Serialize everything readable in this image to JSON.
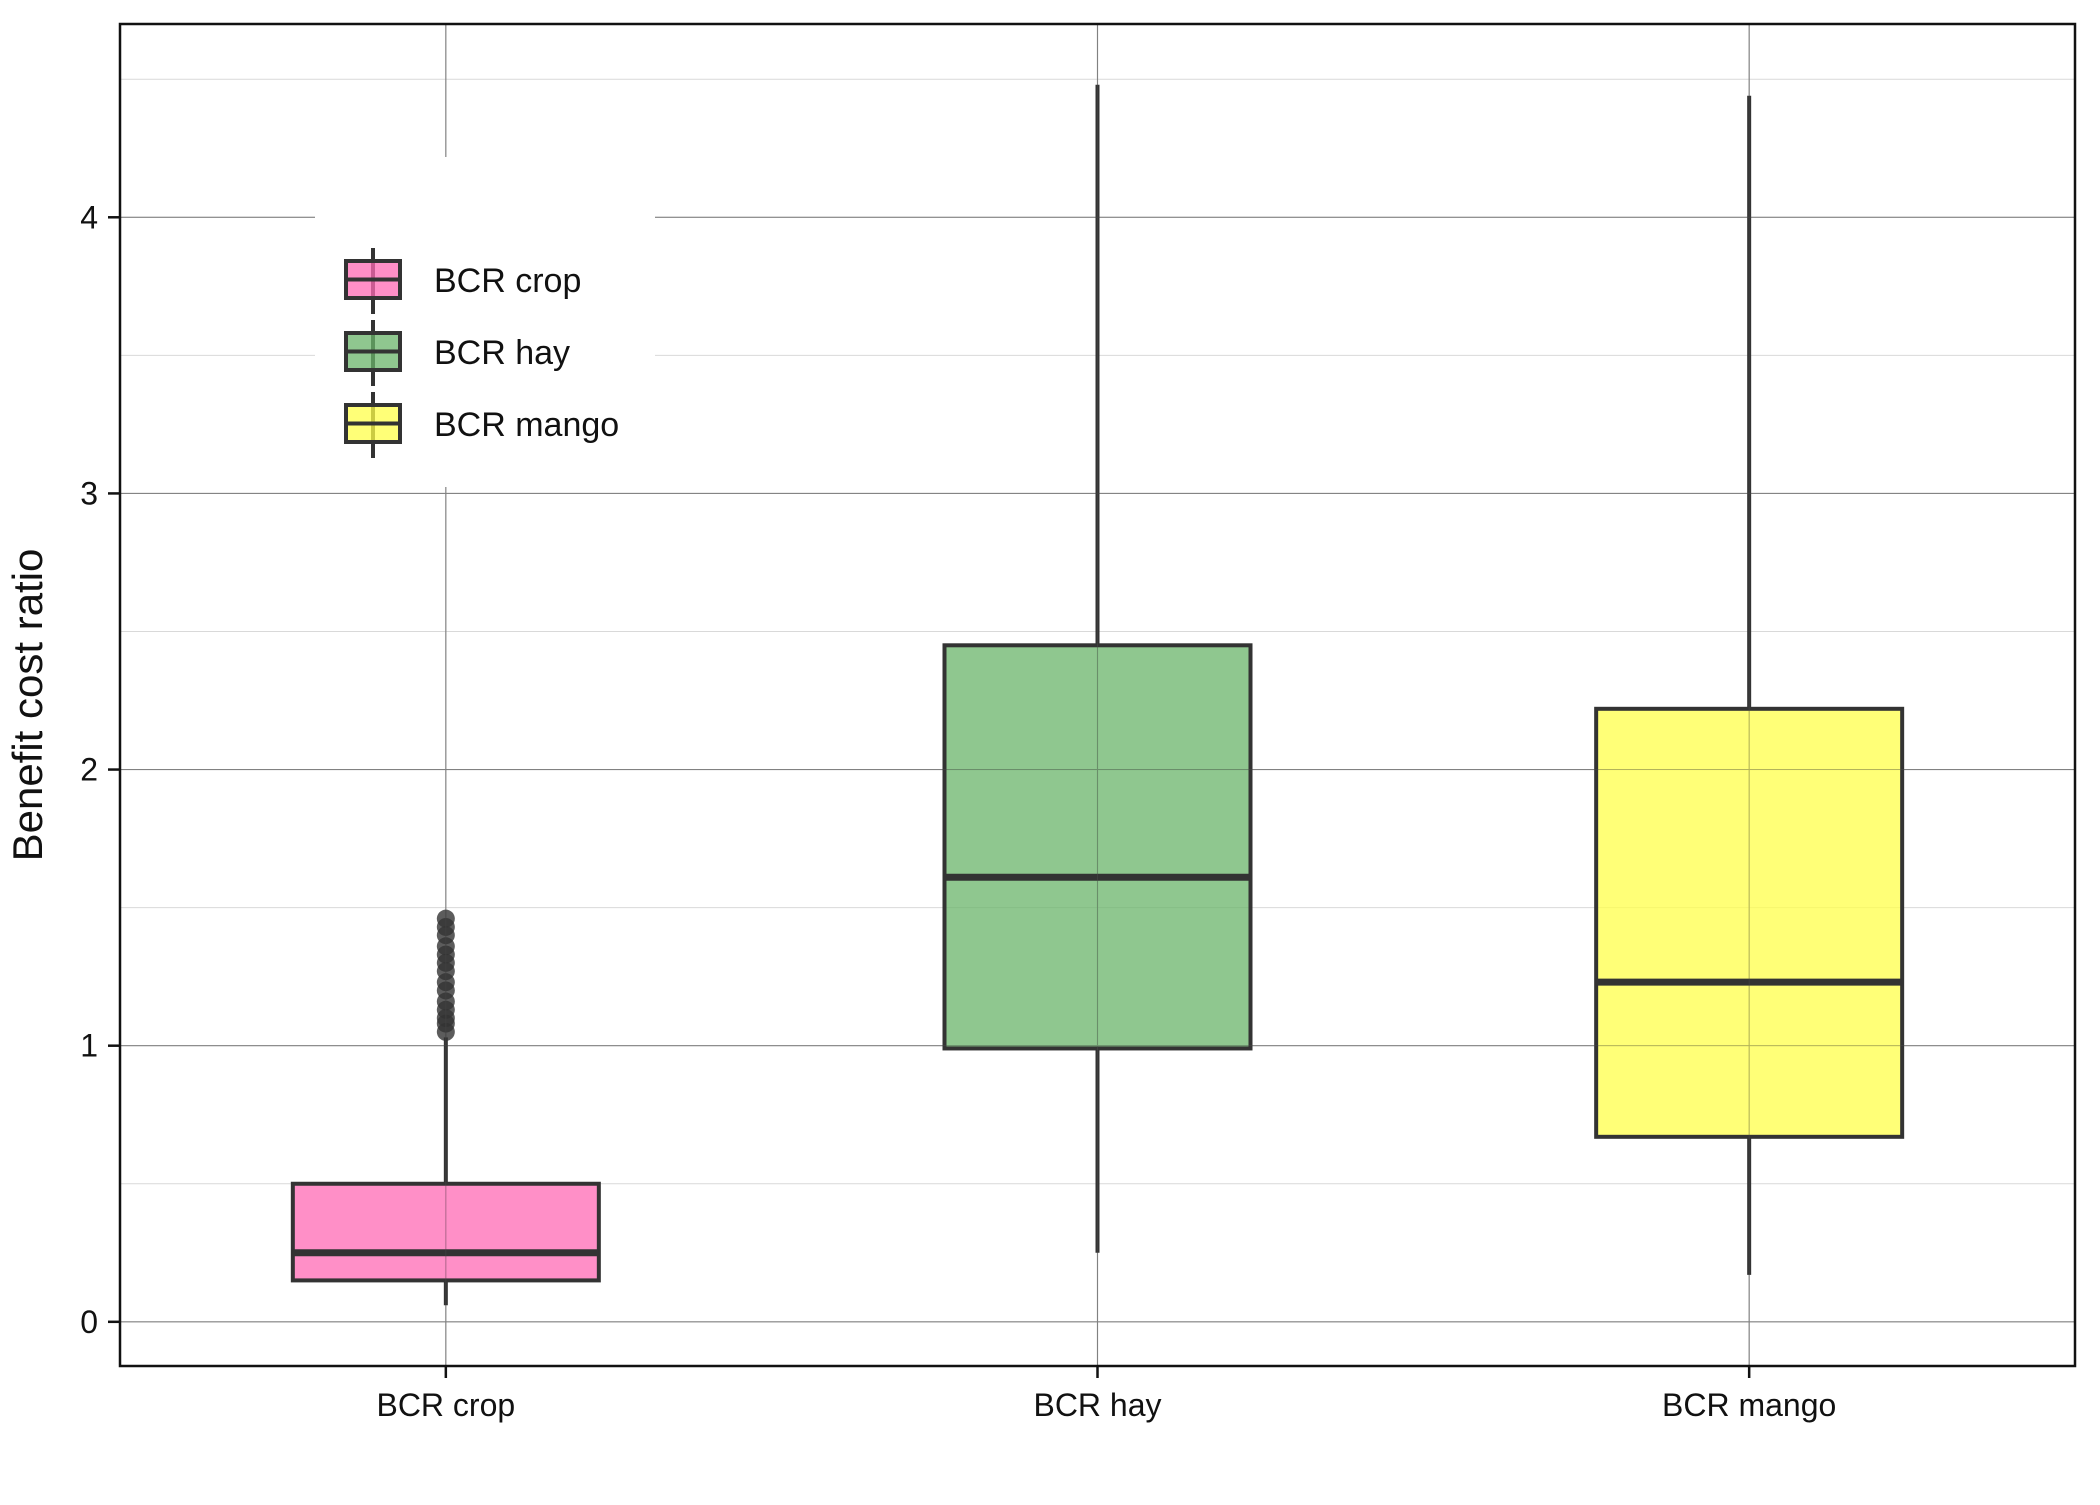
{
  "chart_data": {
    "type": "box",
    "title": "",
    "xlabel": "",
    "ylabel": "Benefit cost ratio",
    "ylim": [
      -0.16,
      4.7
    ],
    "yticks": [
      0,
      1,
      2,
      3,
      4
    ],
    "minor_gridlines": [
      0.5,
      1.5,
      2.5,
      3.5,
      4.5
    ],
    "grid": true,
    "legend_position": "top-left",
    "categories": [
      "BCR crop",
      "BCR hay",
      "BCR mango"
    ],
    "series": [
      {
        "name": "BCR crop",
        "color": "#ff69b4",
        "whisker_low": 0.06,
        "q1": 0.15,
        "median": 0.25,
        "q3": 0.5,
        "whisker_high": 1.03,
        "outliers": [
          1.05,
          1.08,
          1.1,
          1.13,
          1.16,
          1.2,
          1.23,
          1.27,
          1.3,
          1.33,
          1.36,
          1.4,
          1.43,
          1.46
        ]
      },
      {
        "name": "BCR hay",
        "color": "#6ab46a",
        "whisker_low": 0.25,
        "q1": 0.99,
        "median": 1.61,
        "q3": 2.45,
        "whisker_high": 4.48,
        "outliers": []
      },
      {
        "name": "BCR mango",
        "color": "#ffff4a",
        "whisker_low": 0.17,
        "q1": 0.67,
        "median": 1.23,
        "q3": 2.22,
        "whisker_high": 4.44,
        "outliers": []
      }
    ]
  }
}
